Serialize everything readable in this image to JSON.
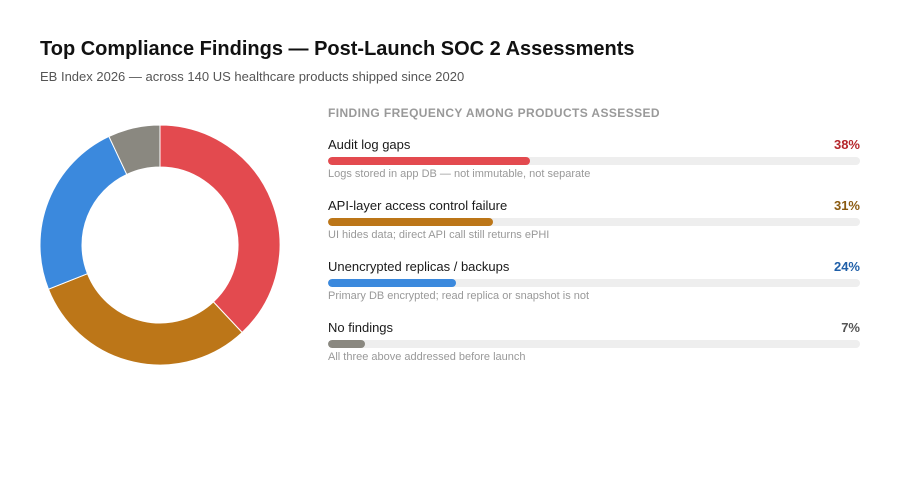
{
  "chart_data": {
    "type": "pie",
    "title": "Top Compliance Findings — Post-Launch SOC 2 Assessments",
    "subtitle": "EB Index 2026 — across 140 US healthcare products shipped since 2020",
    "legend_title": "FINDING FREQUENCY AMONG PRODUCTS ASSESSED",
    "categories": [
      "Audit log gaps",
      "API-layer access control failure",
      "Unencrypted replicas / backups",
      "No findings"
    ],
    "values": [
      38,
      31,
      24,
      7
    ],
    "value_labels": [
      "38%",
      "31%",
      "24%",
      "7%"
    ],
    "notes": [
      "Logs stored in app DB — not immutable, not separate",
      "UI hides data; direct API call still returns ePHI",
      "Primary DB encrypted; read replica or snapshot is not",
      "All three above addressed before launch"
    ],
    "colors": [
      "#e34a4f",
      "#bc7618",
      "#3b89dd",
      "#8a8880"
    ],
    "label_colors": [
      "#b5262b",
      "#8a5a10",
      "#1f5fa8",
      "#555555"
    ],
    "donut": true
  }
}
